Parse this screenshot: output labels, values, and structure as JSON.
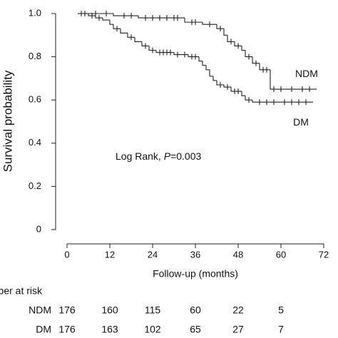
{
  "chart_data": {
    "type": "step",
    "y_label": "Survival probability",
    "x_label": "Follow-up (months)",
    "annotation": {
      "prefix": "Log Rank, ",
      "italic": "P",
      "suffix": "=0.003"
    },
    "xlim": [
      0,
      72
    ],
    "xticks": [
      0,
      12,
      24,
      36,
      48,
      60,
      72
    ],
    "ylim": [
      0,
      1
    ],
    "yticks": [
      0,
      0.2,
      0.4,
      0.6,
      0.8,
      {
        "value": 1,
        "label": "1.0"
      }
    ],
    "color": "#222222",
    "series": [
      {
        "name": "NDM",
        "x": [
          3,
          13,
          20,
          33,
          38,
          42,
          44,
          45,
          47,
          49,
          50,
          52,
          54,
          57,
          70
        ],
        "values": [
          1,
          0.99,
          0.98,
          0.96,
          0.95,
          0.93,
          0.9,
          0.87,
          0.85,
          0.83,
          0.8,
          0.77,
          0.74,
          0.65,
          0.65
        ],
        "censored": [
          5,
          8,
          11,
          16,
          18,
          22,
          24,
          26,
          28,
          30,
          31,
          35,
          36,
          40,
          43,
          46,
          48,
          51,
          53,
          55,
          56,
          58,
          60,
          63,
          66,
          68
        ]
      },
      {
        "name": "DM",
        "x": [
          3,
          6,
          8,
          10,
          12,
          13,
          15,
          17,
          19,
          21,
          23,
          25,
          30,
          34,
          37,
          38,
          39,
          40,
          41,
          42,
          44,
          46,
          49,
          50,
          52,
          69
        ],
        "values": [
          1,
          0.99,
          0.98,
          0.97,
          0.95,
          0.93,
          0.91,
          0.89,
          0.87,
          0.85,
          0.83,
          0.82,
          0.81,
          0.8,
          0.78,
          0.76,
          0.74,
          0.71,
          0.69,
          0.67,
          0.66,
          0.64,
          0.62,
          0.6,
          0.59,
          0.59
        ],
        "censored": [
          4,
          7,
          9,
          14,
          18,
          22,
          24,
          26,
          27,
          28,
          29,
          31,
          33,
          35,
          36,
          43,
          45,
          47,
          48,
          51,
          54,
          56,
          58,
          61,
          63,
          65,
          67
        ]
      }
    ],
    "risk_table": {
      "title": "Number at risk",
      "times": [
        0,
        12,
        24,
        36,
        48,
        60
      ],
      "rows": [
        {
          "name": "NDM",
          "values": [
            176,
            160,
            115,
            60,
            22,
            5
          ]
        },
        {
          "name": "DM",
          "values": [
            176,
            163,
            102,
            65,
            27,
            7
          ]
        }
      ]
    }
  }
}
